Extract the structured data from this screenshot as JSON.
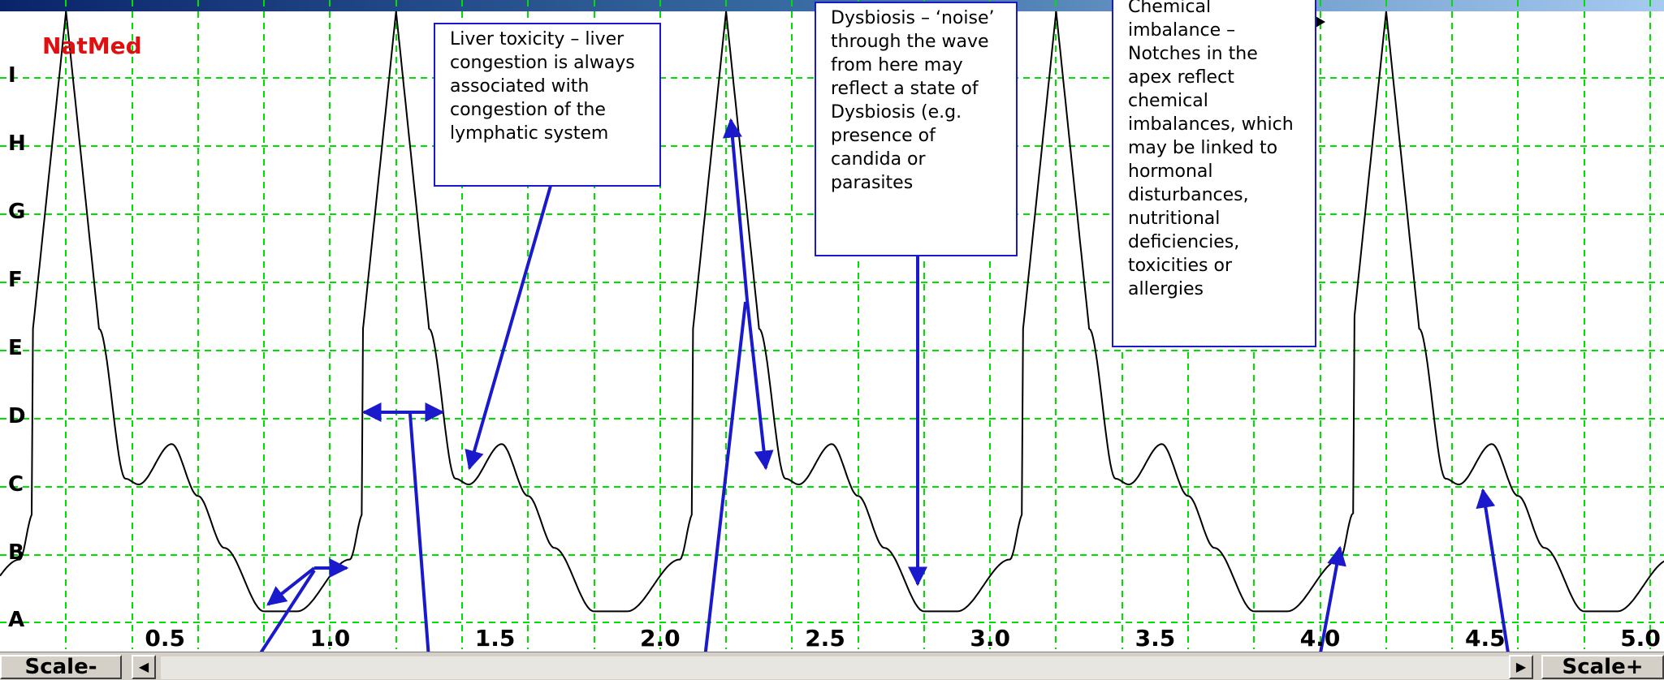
{
  "app": {
    "logo": "NatMed"
  },
  "chart_data": {
    "type": "line",
    "title": "",
    "xlabel": "",
    "ylabel": "",
    "x_ticks": [
      "0.5",
      "1.0",
      "1.5",
      "2.0",
      "2.5",
      "3.0",
      "3.5",
      "4.0",
      "4.5",
      "5.0"
    ],
    "y_ticks": [
      "A",
      "B",
      "C",
      "D",
      "E",
      "F",
      "G",
      "H",
      "I"
    ],
    "xlim": [
      0,
      5.0
    ],
    "grid": true,
    "colors": {
      "wave": "#000000",
      "grid": "#00e000",
      "annotation": "#1a1acc",
      "logo": "#e01010"
    },
    "series": [
      {
        "beat_period": 1.0,
        "first_peak": 0.2,
        "shape": [
          [
            -0.1,
            0.45
          ],
          [
            0.0,
            1.0
          ],
          [
            0.1,
            0.45
          ],
          [
            0.18,
            0.19
          ],
          [
            0.22,
            0.18
          ],
          [
            0.32,
            0.25
          ],
          [
            0.4,
            0.16
          ],
          [
            0.48,
            0.07
          ],
          [
            0.6,
            -0.04
          ],
          [
            0.7,
            -0.04
          ],
          [
            0.86,
            0.05
          ],
          [
            0.9,
            0.13
          ],
          [
            0.92,
            0.31
          ],
          [
            0.93,
            0.45
          ]
        ]
      }
    ]
  },
  "annotations": {
    "liver": "Liver toxicity – liver congestion is always associated with congestion of the lymphatic system",
    "dysbiosis": "Dysbiosis – ‘noise’ through the wave from here may reflect a state of Dysbiosis (e.g. presence of candida or parasites",
    "chemical": "Chemical imbalance – Notches in the apex reflect chemical imbalances, which may be linked to hormonal disturbances, nutritional deficiencies, toxicities or allergies"
  },
  "controls": {
    "scale_minus": "Scale-",
    "scale_plus": "Scale+",
    "scroll_left_icon": "◀",
    "scroll_right_icon": "▶"
  }
}
